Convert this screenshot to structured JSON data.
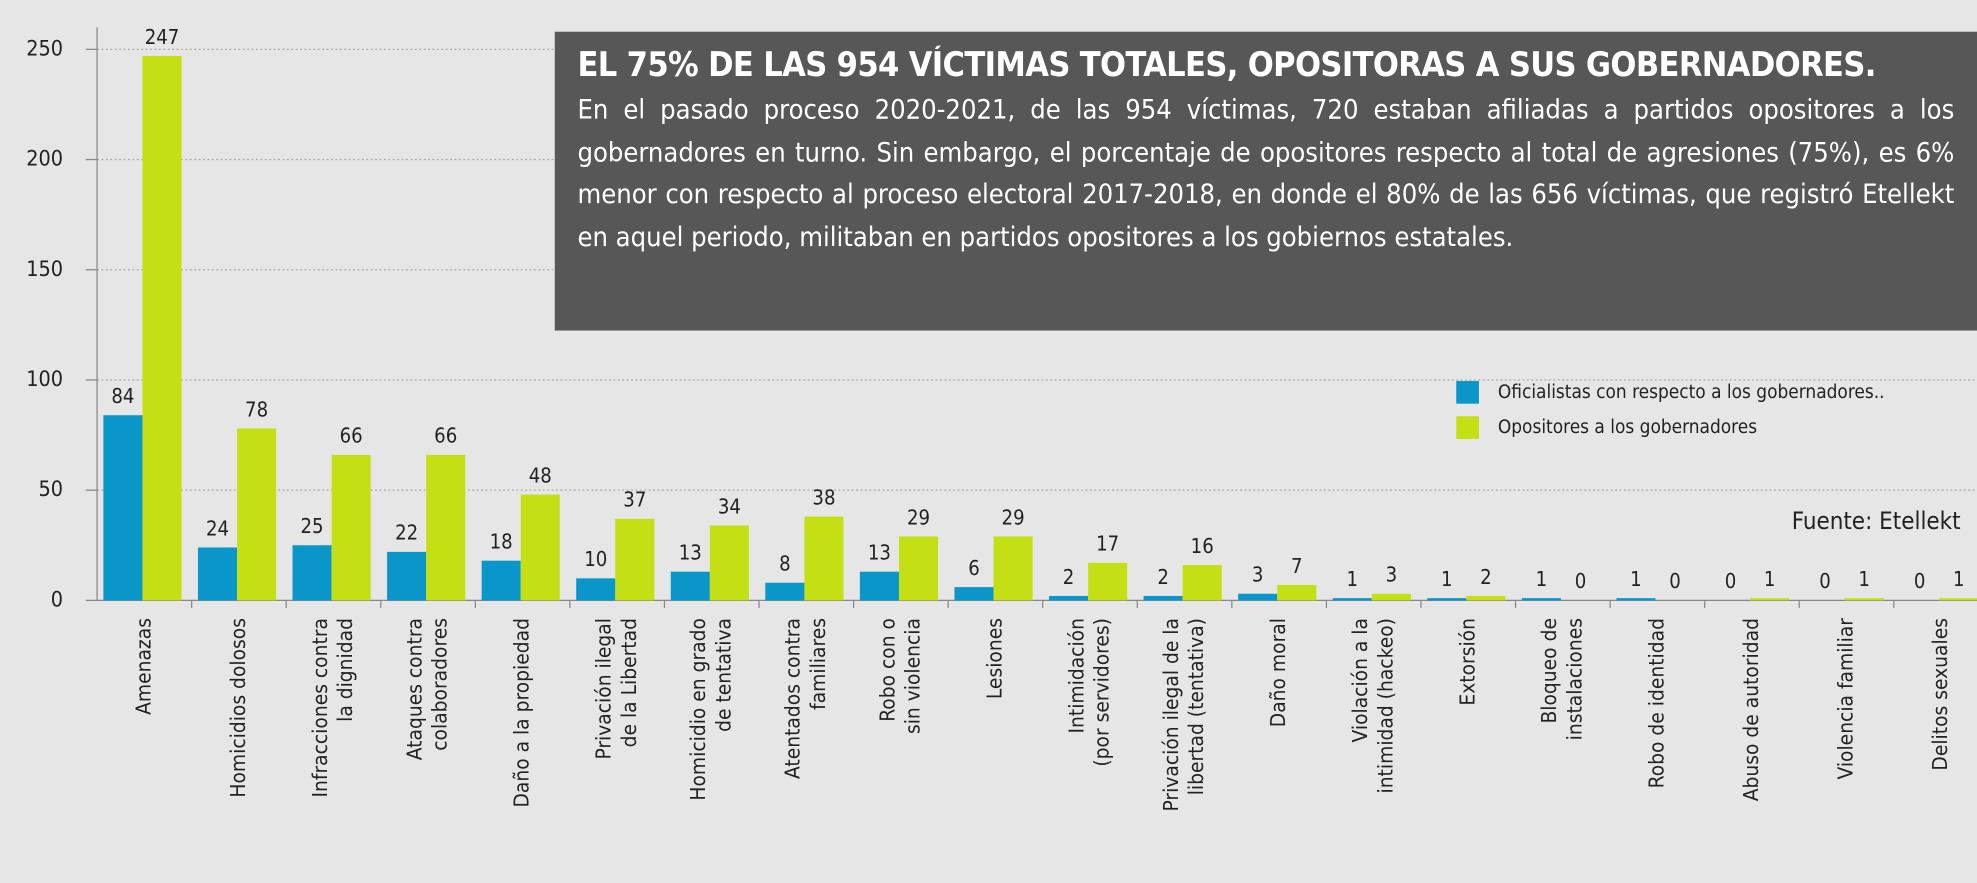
{
  "chart_data": {
    "type": "bar",
    "title": "EL 75% DE LAS 954 VÍCTIMAS TOTALES, OPOSITORAS A SUS GOBERNADORES.",
    "subtitle": "En el pasado proceso 2020-2021, de las 954 víctimas, 720 estaban afiliadas a partidos opositores a los gobernadores en turno. Sin embargo, el porcentaje de opositores respecto al total de agresiones (75%), es 6% menor con respecto al proceso electoral 2017-2018, en donde el 80% de las 656 víctimas, que registró Etellekt en aquel periodo, militaban en partidos opositores a los gobiernos estatales.",
    "source": "Fuente: Etellekt",
    "categories": [
      [
        "Amenazas"
      ],
      [
        "Homicidios dolosos"
      ],
      [
        "Infracciones contra",
        "la dignidad"
      ],
      [
        "Ataques contra",
        "colaboradores"
      ],
      [
        "Daño a la propiedad"
      ],
      [
        "Privación ilegal",
        "de la Libertad"
      ],
      [
        "Homicidio en grado",
        "de tentativa"
      ],
      [
        "Atentados contra",
        "familiares"
      ],
      [
        "Robo con o",
        "sin violencia"
      ],
      [
        "Lesiones"
      ],
      [
        "Intimidación",
        "(por servidores)"
      ],
      [
        "Privación ilegal de la",
        "libertad (tentativa)"
      ],
      [
        "Daño moral"
      ],
      [
        "Violación a la",
        "intimidad (hackeo)"
      ],
      [
        "Extorsión"
      ],
      [
        "Bloqueo de",
        "instalaciones"
      ],
      [
        "Robo de identidad"
      ],
      [
        "Abuso de autoridad"
      ],
      [
        "Violencia familiar"
      ],
      [
        "Delitos sexuales"
      ]
    ],
    "series": [
      {
        "name": "Oficialistas con respecto a los gobernadores..",
        "color": "#0a96c8",
        "values": [
          84,
          24,
          25,
          22,
          18,
          10,
          13,
          8,
          13,
          6,
          2,
          2,
          3,
          1,
          1,
          1,
          1,
          0,
          0,
          0
        ]
      },
      {
        "name": "Opositores a los gobernadores",
        "color": "#c4e014",
        "values": [
          247,
          78,
          66,
          66,
          48,
          37,
          34,
          38,
          29,
          29,
          17,
          16,
          7,
          3,
          2,
          0,
          0,
          1,
          1,
          1
        ]
      }
    ],
    "ylim": [
      0,
      260
    ],
    "yticks": [
      0,
      50,
      100,
      150,
      200,
      250
    ],
    "grid": true,
    "legend": "right"
  }
}
